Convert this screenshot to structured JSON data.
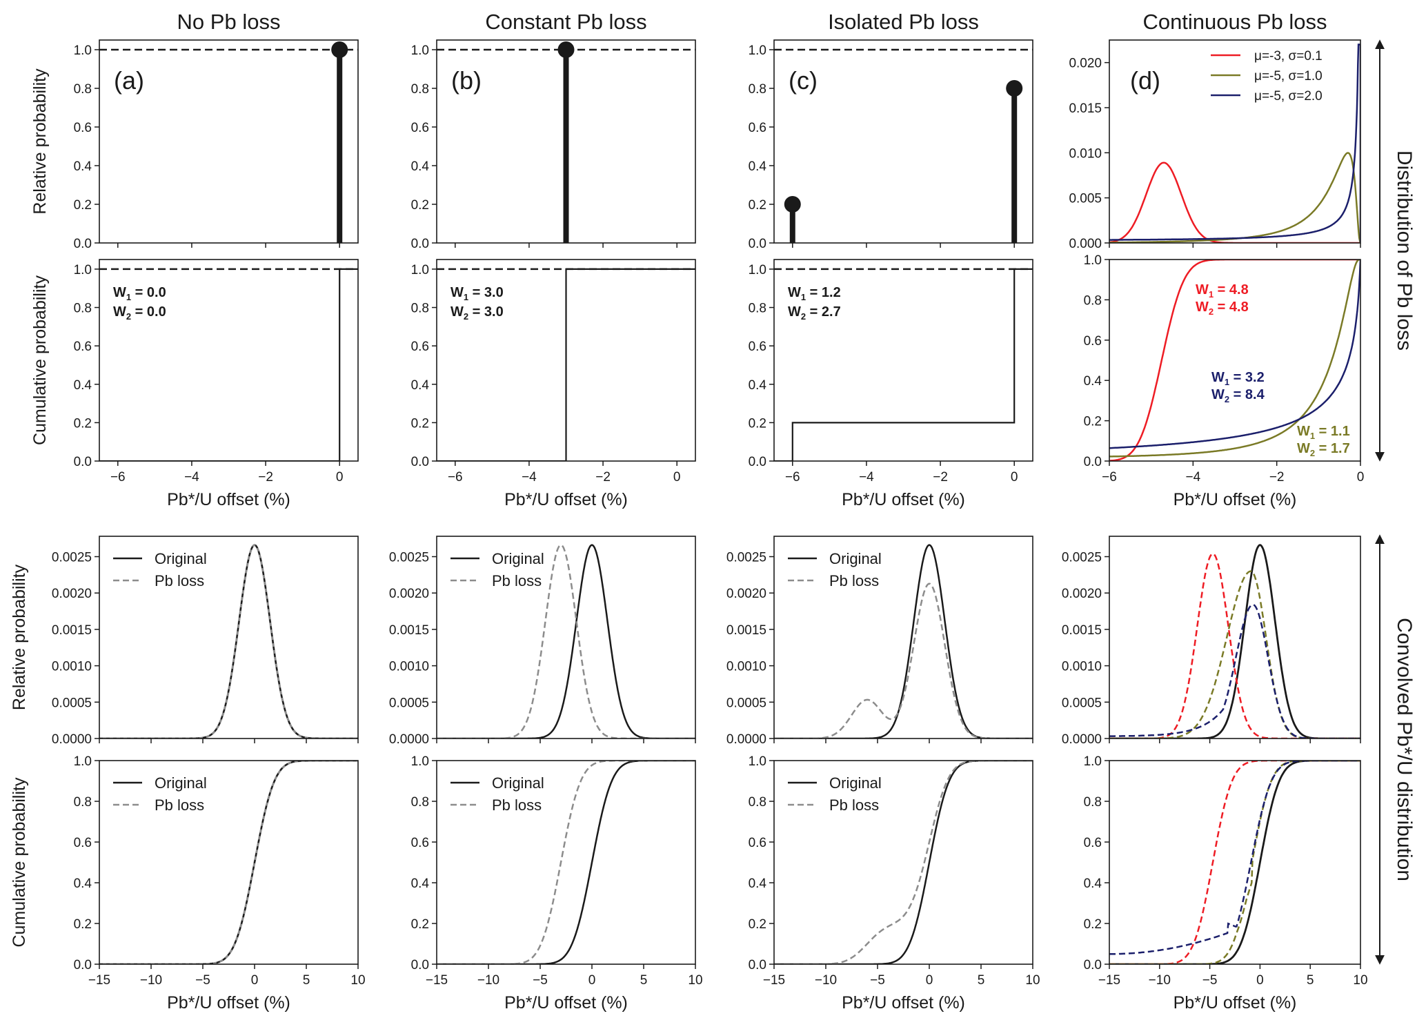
{
  "figure": {
    "column_titles": [
      "No Pb loss",
      "Constant Pb loss",
      "Isolated Pb loss",
      "Continuous Pb loss"
    ],
    "side_labels": [
      "Distribution of Pb loss",
      "Convolved Pb*/U distribution"
    ],
    "panel_letters": [
      "(a)",
      "(b)",
      "(c)",
      "(d)"
    ],
    "xlabel": "Pb*/U offset (%)",
    "ylabel_relative": "Relative probability",
    "ylabel_cumulative": "Cumulative probability",
    "colors": {
      "black": "#1a1a1a",
      "grey": "#8c8c8c",
      "red": "#ee1c24",
      "olive": "#7a7a26",
      "navy": "#1b1f6b"
    }
  },
  "chart_data": [
    {
      "id": "a-dist",
      "type": "scatter",
      "subtype": "stem",
      "title": "No Pb loss",
      "ylabel": "Relative probability",
      "xlim": [
        -6.5,
        0.5
      ],
      "ylim": [
        0,
        1.05
      ],
      "xticks": [
        -6,
        -4,
        -2,
        0
      ],
      "yticks": [
        "0.0",
        "0.2",
        "0.4",
        "0.6",
        "0.8",
        "1.0"
      ],
      "reference_line": 1.0,
      "stems": [
        {
          "x": 0,
          "y": 1.0
        }
      ]
    },
    {
      "id": "b-dist",
      "type": "scatter",
      "subtype": "stem",
      "title": "Constant Pb loss",
      "ylabel": "",
      "xlim": [
        -6.5,
        0.5
      ],
      "ylim": [
        0,
        1.05
      ],
      "xticks": [
        -6,
        -4,
        -2,
        0
      ],
      "yticks": [
        "0.0",
        "0.2",
        "0.4",
        "0.6",
        "0.8",
        "1.0"
      ],
      "reference_line": 1.0,
      "stems": [
        {
          "x": -3,
          "y": 1.0
        }
      ]
    },
    {
      "id": "c-dist",
      "type": "scatter",
      "subtype": "stem",
      "title": "Isolated Pb loss",
      "ylabel": "",
      "xlim": [
        -6.5,
        0.5
      ],
      "ylim": [
        0,
        1.05
      ],
      "xticks": [
        -6,
        -4,
        -2,
        0
      ],
      "yticks": [
        "0.0",
        "0.2",
        "0.4",
        "0.6",
        "0.8",
        "1.0"
      ],
      "reference_line": 1.0,
      "stems": [
        {
          "x": -6,
          "y": 0.2
        },
        {
          "x": 0,
          "y": 0.8
        }
      ]
    },
    {
      "id": "d-dist",
      "type": "line",
      "title": "Continuous Pb loss",
      "ylabel": "",
      "xlim": [
        -6,
        0
      ],
      "ylim": [
        0,
        0.0225
      ],
      "xticks": [
        -6,
        -4,
        -2,
        0
      ],
      "yticks": [
        "0.000",
        "0.005",
        "0.010",
        "0.015",
        "0.020"
      ],
      "legend": "top-right",
      "series": [
        {
          "name": "μ=-3, σ=0.1",
          "color": "red",
          "peak_x": -4.7,
          "peak_y": 0.0089
        },
        {
          "name": "μ=-5, σ=1.0",
          "color": "olive",
          "peak_x": -0.3,
          "peak_y": 0.0098
        },
        {
          "name": "μ=-5, σ=2.0",
          "color": "navy",
          "peak_x": 0.0,
          "peak_y": 0.022
        }
      ]
    },
    {
      "id": "a-cdf",
      "type": "line",
      "ylabel": "Cumulative probability",
      "xlabel": "Pb*/U offset (%)",
      "xlim": [
        -6.5,
        0.5
      ],
      "ylim": [
        0,
        1.05
      ],
      "xticks": [
        "−6",
        "−4",
        "−2",
        "0"
      ],
      "yticks": [
        "0.0",
        "0.2",
        "0.4",
        "0.6",
        "0.8",
        "1.0"
      ],
      "reference_line": 1.0,
      "steps": [
        [
          -6.5,
          0
        ],
        [
          0,
          0
        ],
        [
          0,
          1
        ],
        [
          0.5,
          1
        ]
      ],
      "annotation": {
        "w1": "0.0",
        "w2": "0.0"
      }
    },
    {
      "id": "b-cdf",
      "type": "line",
      "ylabel": "",
      "xlabel": "Pb*/U offset (%)",
      "xlim": [
        -6.5,
        0.5
      ],
      "ylim": [
        0,
        1.05
      ],
      "xticks": [
        "−6",
        "−4",
        "−2",
        "0"
      ],
      "yticks": [
        "0.0",
        "0.2",
        "0.4",
        "0.6",
        "0.8",
        "1.0"
      ],
      "reference_line": 1.0,
      "steps": [
        [
          -6.5,
          0
        ],
        [
          -3,
          0
        ],
        [
          -3,
          1
        ],
        [
          0.5,
          1
        ]
      ],
      "annotation": {
        "w1": "3.0",
        "w2": "3.0"
      }
    },
    {
      "id": "c-cdf",
      "type": "line",
      "ylabel": "",
      "xlabel": "Pb*/U offset (%)",
      "xlim": [
        -6.5,
        0.5
      ],
      "ylim": [
        0,
        1.05
      ],
      "xticks": [
        "−6",
        "−4",
        "−2",
        "0"
      ],
      "yticks": [
        "0.0",
        "0.2",
        "0.4",
        "0.6",
        "0.8",
        "1.0"
      ],
      "reference_line": 1.0,
      "steps": [
        [
          -6.5,
          0
        ],
        [
          -6,
          0
        ],
        [
          -6,
          0.2
        ],
        [
          0,
          0.2
        ],
        [
          0,
          1
        ],
        [
          0.5,
          1
        ]
      ],
      "annotation": {
        "w1": "1.2",
        "w2": "2.7"
      }
    },
    {
      "id": "d-cdf",
      "type": "line",
      "ylabel": "",
      "xlabel": "Pb*/U offset (%)",
      "xlim": [
        -6,
        0
      ],
      "ylim": [
        0,
        1.0
      ],
      "xticks": [
        "−6",
        "−4",
        "−2",
        "0"
      ],
      "yticks": [
        "0.0",
        "0.2",
        "0.4",
        "0.6",
        "0.8",
        "1.0"
      ],
      "annotations": [
        {
          "color": "red",
          "w1": "4.8",
          "w2": "4.8"
        },
        {
          "color": "navy",
          "w1": "3.2",
          "w2": "8.4"
        },
        {
          "color": "olive",
          "w1": "1.1",
          "w2": "1.7"
        }
      ]
    },
    {
      "id": "a-conv-pdf",
      "type": "line",
      "ylabel": "Relative probability",
      "xlim": [
        -15,
        10
      ],
      "ylim": [
        0,
        0.00278
      ],
      "xticks": [
        -15,
        -10,
        -5,
        0,
        5,
        10
      ],
      "yticks": [
        "0.0000",
        "0.0005",
        "0.0010",
        "0.0015",
        "0.0020",
        "0.0025"
      ],
      "legend": "top-left",
      "series": [
        {
          "name": "Original",
          "style": "solid",
          "color": "black",
          "mean": 0,
          "sd": 1.5,
          "peak": 0.00266
        },
        {
          "name": "Pb loss",
          "style": "dashed",
          "color": "grey",
          "mean": 0,
          "sd": 1.5,
          "peak": 0.00266
        }
      ]
    },
    {
      "id": "b-conv-pdf",
      "type": "line",
      "ylabel": "",
      "xlim": [
        -15,
        10
      ],
      "ylim": [
        0,
        0.00278
      ],
      "xticks": [
        -15,
        -10,
        -5,
        0,
        5,
        10
      ],
      "yticks": [
        "0.0000",
        "0.0005",
        "0.0010",
        "0.0015",
        "0.0020",
        "0.0025"
      ],
      "legend": "top-left",
      "series": [
        {
          "name": "Original",
          "style": "solid",
          "color": "black",
          "mean": 0,
          "sd": 1.5,
          "peak": 0.00266
        },
        {
          "name": "Pb loss",
          "style": "dashed",
          "color": "grey",
          "mean": -3,
          "sd": 1.5,
          "peak": 0.00266
        }
      ]
    },
    {
      "id": "c-conv-pdf",
      "type": "line",
      "ylabel": "",
      "xlim": [
        -15,
        10
      ],
      "ylim": [
        0,
        0.00278
      ],
      "xticks": [
        -15,
        -10,
        -5,
        0,
        5,
        10
      ],
      "yticks": [
        "0.0000",
        "0.0005",
        "0.0010",
        "0.0015",
        "0.0020",
        "0.0025"
      ],
      "legend": "top-left",
      "series": [
        {
          "name": "Original",
          "style": "solid",
          "color": "black",
          "mean": 0,
          "sd": 1.5,
          "peak": 0.00266
        },
        {
          "name": "Pb loss",
          "style": "dashed",
          "color": "grey",
          "components": [
            {
              "mean": -6,
              "weight": 0.2
            },
            {
              "mean": 0,
              "weight": 0.8
            }
          ],
          "sd": 1.5
        }
      ]
    },
    {
      "id": "d-conv-pdf",
      "type": "line",
      "ylabel": "",
      "xlim": [
        -15,
        10
      ],
      "ylim": [
        0,
        0.00278
      ],
      "xticks": [
        -15,
        -10,
        -5,
        0,
        5,
        10
      ],
      "yticks": [
        "0.0000",
        "0.0005",
        "0.0010",
        "0.0015",
        "0.0020",
        "0.0025"
      ],
      "series": [
        {
          "name": "Original",
          "style": "solid",
          "color": "black",
          "peak_x": 0,
          "peak_y": 0.00266
        },
        {
          "name": "μ=-3, σ=0.1",
          "style": "dashed",
          "color": "red",
          "peak_x": -4.7,
          "peak_y": 0.00254
        },
        {
          "name": "μ=-5, σ=1.0",
          "style": "dashed",
          "color": "olive",
          "peak_x": -0.9,
          "peak_y": 0.0023
        },
        {
          "name": "μ=-5, σ=2.0",
          "style": "dashed",
          "color": "navy",
          "peak_x": -0.7,
          "peak_y": 0.00188
        }
      ]
    },
    {
      "id": "a-conv-cdf",
      "type": "line",
      "ylabel": "Cumulative probability",
      "xlabel": "Pb*/U offset (%)",
      "xlim": [
        -15,
        10
      ],
      "ylim": [
        0,
        1.0
      ],
      "xticks": [
        "−15",
        "−10",
        "−5",
        "0",
        "5",
        "10"
      ],
      "yticks": [
        "0.0",
        "0.2",
        "0.4",
        "0.6",
        "0.8",
        "1.0"
      ],
      "legend": "top-left",
      "series": [
        {
          "name": "Original",
          "style": "solid",
          "color": "black"
        },
        {
          "name": "Pb loss",
          "style": "dashed",
          "color": "grey"
        }
      ]
    },
    {
      "id": "b-conv-cdf",
      "type": "line",
      "ylabel": "",
      "xlabel": "Pb*/U offset (%)",
      "xlim": [
        -15,
        10
      ],
      "ylim": [
        0,
        1.0
      ],
      "xticks": [
        "−15",
        "−10",
        "−5",
        "0",
        "5",
        "10"
      ],
      "yticks": [
        "0.0",
        "0.2",
        "0.4",
        "0.6",
        "0.8",
        "1.0"
      ],
      "legend": "top-left",
      "series": [
        {
          "name": "Original",
          "style": "solid",
          "color": "black"
        },
        {
          "name": "Pb loss",
          "style": "dashed",
          "color": "grey"
        }
      ]
    },
    {
      "id": "c-conv-cdf",
      "type": "line",
      "ylabel": "",
      "xlabel": "Pb*/U offset (%)",
      "xlim": [
        -15,
        10
      ],
      "ylim": [
        0,
        1.0
      ],
      "xticks": [
        "−15",
        "−10",
        "−5",
        "0",
        "5",
        "10"
      ],
      "yticks": [
        "0.0",
        "0.2",
        "0.4",
        "0.6",
        "0.8",
        "1.0"
      ],
      "legend": "top-left",
      "series": [
        {
          "name": "Original",
          "style": "solid",
          "color": "black"
        },
        {
          "name": "Pb loss",
          "style": "dashed",
          "color": "grey"
        }
      ]
    },
    {
      "id": "d-conv-cdf",
      "type": "line",
      "ylabel": "",
      "xlabel": "Pb*/U offset (%)",
      "xlim": [
        -15,
        10
      ],
      "ylim": [
        0,
        1.0
      ],
      "xticks": [
        "−15",
        "−10",
        "−5",
        "0",
        "5",
        "10"
      ],
      "yticks": [
        "0.0",
        "0.2",
        "0.4",
        "0.6",
        "0.8",
        "1.0"
      ],
      "series": [
        {
          "name": "Original",
          "style": "solid",
          "color": "black"
        },
        {
          "name": "μ=-3, σ=0.1",
          "style": "dashed",
          "color": "red"
        },
        {
          "name": "μ=-5, σ=1.0",
          "style": "dashed",
          "color": "olive"
        },
        {
          "name": "μ=-5, σ=2.0",
          "style": "dashed",
          "color": "navy"
        }
      ]
    }
  ]
}
